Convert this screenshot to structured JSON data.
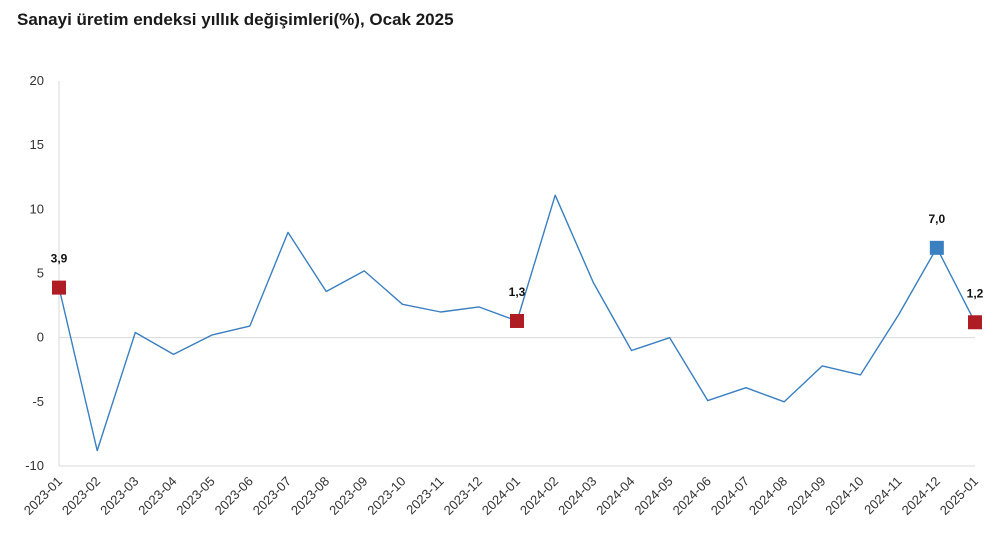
{
  "chart_data": {
    "type": "line",
    "title": "Sanayi üretim endeksi yıllık değişimleri(%), Ocak 2025",
    "xlabel": "",
    "ylabel": "",
    "ylim": [
      -10,
      20
    ],
    "yticks": [
      20,
      15,
      10,
      5,
      0,
      -5,
      -10
    ],
    "grid": false,
    "categories": [
      "2023-01",
      "2023-02",
      "2023-03",
      "2023-04",
      "2023-05",
      "2023-06",
      "2023-07",
      "2023-08",
      "2023-09",
      "2023-10",
      "2023-11",
      "2023-12",
      "2024-01",
      "2024-02",
      "2024-03",
      "2024-04",
      "2024-05",
      "2024-06",
      "2024-07",
      "2024-08",
      "2024-09",
      "2024-10",
      "2024-11",
      "2024-12",
      "2025-01"
    ],
    "series": [
      {
        "values": [
          3.9,
          -8.8,
          0.4,
          -1.3,
          0.2,
          0.9,
          8.2,
          3.6,
          5.2,
          2.6,
          2.0,
          2.4,
          1.3,
          11.1,
          4.3,
          -1.0,
          0.0,
          -4.9,
          -3.9,
          -5.0,
          -2.2,
          -2.9,
          1.8,
          7.0,
          1.2
        ],
        "color": "#3a7fc0"
      }
    ],
    "highlighted_points": [
      {
        "index": 0,
        "label": "3,9",
        "color": "#b01c24"
      },
      {
        "index": 12,
        "label": "1,3",
        "color": "#b01c24"
      },
      {
        "index": 23,
        "label": "7,0",
        "color": "#3a7fc0"
      },
      {
        "index": 24,
        "label": "1,2",
        "color": "#b01c24"
      }
    ],
    "axis_color": "#d9d9d9"
  }
}
